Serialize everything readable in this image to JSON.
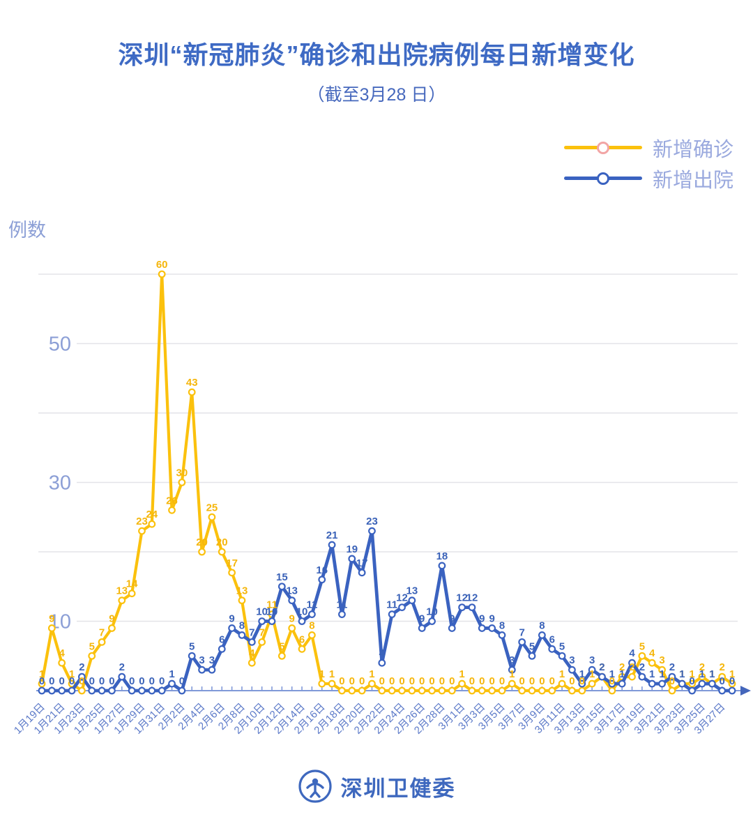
{
  "title": "深圳“新冠肺炎”确诊和出院病例每日新增变化",
  "subtitle": "（截至3月28 日）",
  "y_axis_title": "例数",
  "footer": {
    "org": "深圳卫健委"
  },
  "colors": {
    "title": "#3e6ac4",
    "confirmed_line": "#fbc10d",
    "confirmed_label": "#f5b60b",
    "confirmed_marker_ring": "#f2a5a5",
    "discharged_line": "#3a62c0",
    "discharged_label": "#3a62b8",
    "gridline": "#e3e3e8",
    "axis": "#8099d8",
    "date_label": "#5b79c8",
    "y_tick_label": "#8c9fd6"
  },
  "chart_data": {
    "type": "line",
    "title": "深圳“新冠肺炎”确诊和出院病例每日新增变化",
    "subtitle": "（截至3月28 日）",
    "y_axis_title": "例数",
    "legend_position": "top-right",
    "grid": true,
    "point_labels": true,
    "x_label_interval": 2,
    "x_label_rotation": 45,
    "ylim": [
      0,
      62
    ],
    "gridlines": [
      10,
      20,
      30,
      40,
      50,
      60
    ],
    "y_tick_labels": [
      10,
      30,
      50
    ],
    "x": [
      "1月19日",
      "1月20日",
      "1月21日",
      "1月22日",
      "1月23日",
      "1月24日",
      "1月25日",
      "1月26日",
      "1月27日",
      "1月28日",
      "1月29日",
      "1月30日",
      "1月31日",
      "2月1日",
      "2月2日",
      "2月3日",
      "2月4日",
      "2月5日",
      "2月6日",
      "2月7日",
      "2月8日",
      "2月9日",
      "2月10日",
      "2月11日",
      "2月12日",
      "2月13日",
      "2月14日",
      "2月15日",
      "2月16日",
      "2月17日",
      "2月18日",
      "2月19日",
      "2月20日",
      "2月21日",
      "2月22日",
      "2月23日",
      "2月24日",
      "2月25日",
      "2月26日",
      "2月27日",
      "2月28日",
      "2月29日",
      "3月1日",
      "3月2日",
      "3月3日",
      "3月4日",
      "3月5日",
      "3月6日",
      "3月7日",
      "3月8日",
      "3月9日",
      "3月10日",
      "3月11日",
      "3月12日",
      "3月13日",
      "3月14日",
      "3月15日",
      "3月16日",
      "3月17日",
      "3月18日",
      "3月19日",
      "3月20日",
      "3月21日",
      "3月22日",
      "3月23日",
      "3月24日",
      "3月25日",
      "3月26日",
      "3月27日",
      "3月28日"
    ],
    "series": [
      {
        "name": "新增确诊",
        "color": "#fbc10d",
        "label_color": "#f5b60b",
        "marker_ring": "#f2a5a5",
        "values": [
          1,
          9,
          4,
          1,
          0,
          5,
          7,
          9,
          13,
          14,
          23,
          24,
          60,
          26,
          30,
          43,
          20,
          25,
          20,
          17,
          13,
          4,
          7,
          11,
          5,
          9,
          6,
          8,
          1,
          1,
          0,
          0,
          0,
          1,
          0,
          0,
          0,
          0,
          0,
          0,
          0,
          0,
          1,
          0,
          0,
          0,
          0,
          1,
          0,
          0,
          0,
          0,
          1,
          0,
          0,
          1,
          2,
          0,
          2,
          2,
          5,
          4,
          3,
          0,
          1,
          1,
          2,
          1,
          2,
          1
        ]
      },
      {
        "name": "新增出院",
        "color": "#3a62c0",
        "label_color": "#3a62b8",
        "marker_ring": "#3a62c0",
        "values": [
          0,
          0,
          0,
          0,
          2,
          0,
          0,
          0,
          2,
          0,
          0,
          0,
          0,
          1,
          0,
          5,
          3,
          3,
          6,
          9,
          8,
          7,
          10,
          10,
          15,
          13,
          10,
          11,
          16,
          21,
          11,
          19,
          17,
          23,
          4,
          11,
          12,
          13,
          9,
          10,
          18,
          9,
          12,
          12,
          9,
          9,
          8,
          3,
          7,
          5,
          8,
          6,
          5,
          3,
          1,
          3,
          2,
          1,
          1,
          4,
          2,
          1,
          1,
          2,
          1,
          0,
          1,
          1,
          0,
          0
        ]
      }
    ]
  }
}
